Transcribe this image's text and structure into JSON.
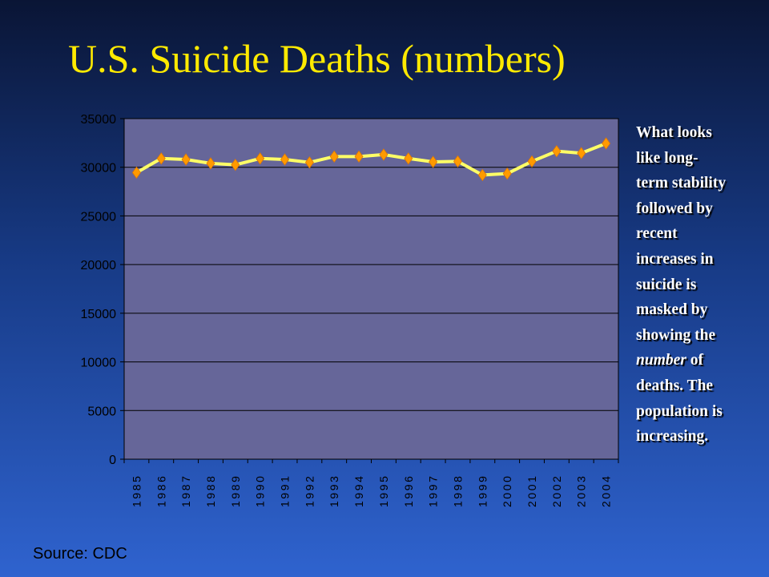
{
  "title": "U.S. Suicide Deaths (numbers)",
  "annotation": {
    "line1": "What looks",
    "line2": "like long-",
    "line3": "term stability",
    "line4": "followed by",
    "line5": "recent",
    "line6": "increases in",
    "line7": "suicide is",
    "line8": "masked by",
    "line9": "showing the",
    "line10_em": "number",
    "line10_rest": " of",
    "line11": "deaths. The",
    "line12": "population is",
    "line13": "increasing."
  },
  "source": "Source: CDC",
  "colors": {
    "plot_bg": "#666699",
    "line": "#ffff66",
    "marker": "#ff9a00",
    "title": "#ffea00"
  },
  "chart_data": {
    "type": "line",
    "title": "",
    "xlabel": "",
    "ylabel": "",
    "grid": true,
    "legend": "none",
    "ylim": [
      0,
      35000
    ],
    "yticks": [
      "0",
      "5000",
      "10000",
      "15000",
      "20000",
      "25000",
      "30000",
      "35000"
    ],
    "categories": [
      "1985",
      "1986",
      "1987",
      "1988",
      "1989",
      "1990",
      "1991",
      "1992",
      "1993",
      "1994",
      "1995",
      "1996",
      "1997",
      "1998",
      "1999",
      "2000",
      "2001",
      "2002",
      "2003",
      "2004"
    ],
    "series": [
      {
        "name": "",
        "values": [
          29450,
          30900,
          30800,
          30400,
          30250,
          30900,
          30800,
          30500,
          31100,
          31100,
          31300,
          30900,
          30550,
          30600,
          29200,
          29350,
          30600,
          31650,
          31450,
          32450
        ]
      }
    ]
  }
}
